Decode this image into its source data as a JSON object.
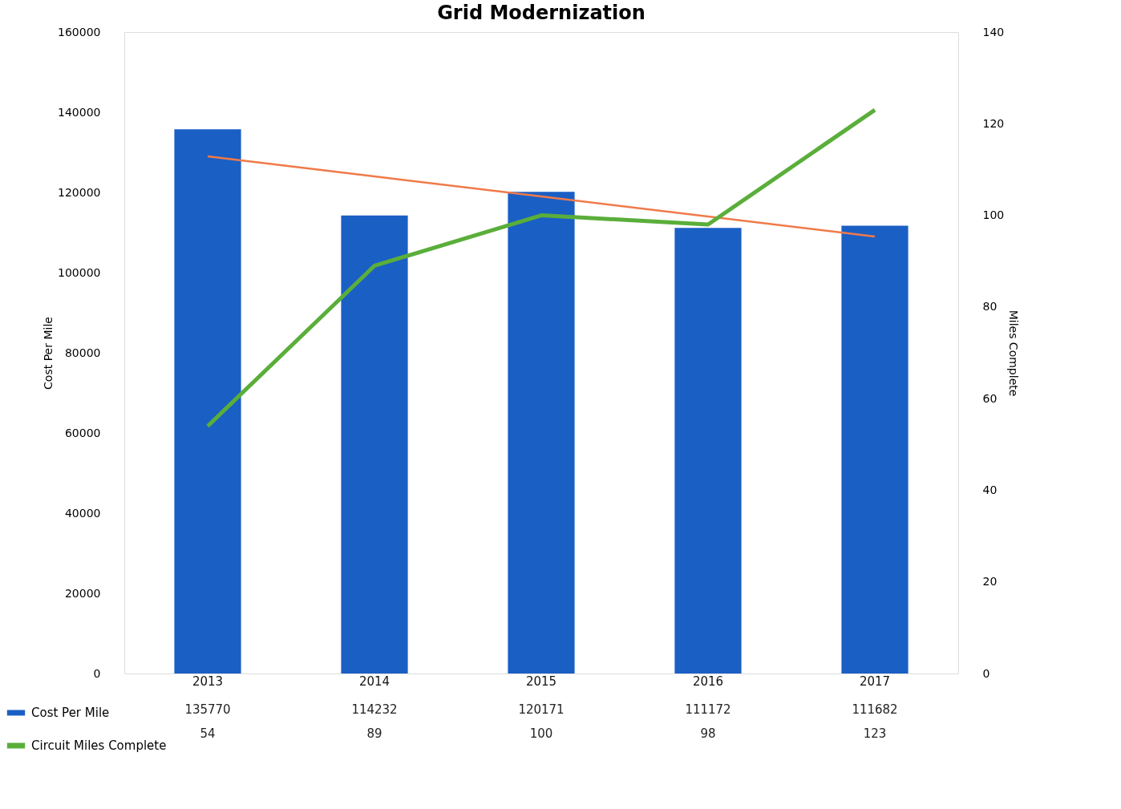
{
  "chart_data": {
    "type": "bar",
    "title": "Grid Modernization",
    "ylabel": "Cost Per Mile",
    "y2label": "Miles Complete",
    "categories": [
      "2013",
      "2014",
      "2015",
      "2016",
      "2017"
    ],
    "series": [
      {
        "name": "Cost Per Mile",
        "color": "#1a5fc4",
        "values": [
          135770,
          114232,
          120171,
          111172,
          111682
        ],
        "value_labels": [
          "135770",
          "114232",
          "120171",
          "111172",
          "111682"
        ]
      },
      {
        "name": "Circuit Miles Complete",
        "type": "line",
        "axis": "y2",
        "color": "#5aae3a",
        "values": [
          54,
          89,
          100,
          98,
          123
        ],
        "value_labels": [
          "54",
          "89",
          "100",
          "98",
          "123"
        ]
      },
      {
        "type": "line",
        "color": "#f07a4a",
        "values": [
          129000,
          124000,
          119000,
          114000,
          109000
        ]
      }
    ],
    "ylim": [
      0,
      160000
    ],
    "yticks": [
      0,
      20000,
      40000,
      60000,
      80000,
      100000,
      120000,
      140000,
      160000
    ],
    "y2lim": [
      0,
      140
    ],
    "y2ticks": [
      0,
      20,
      40,
      60,
      80,
      100,
      120,
      140
    ],
    "legend": "bottom left",
    "grid": false
  }
}
